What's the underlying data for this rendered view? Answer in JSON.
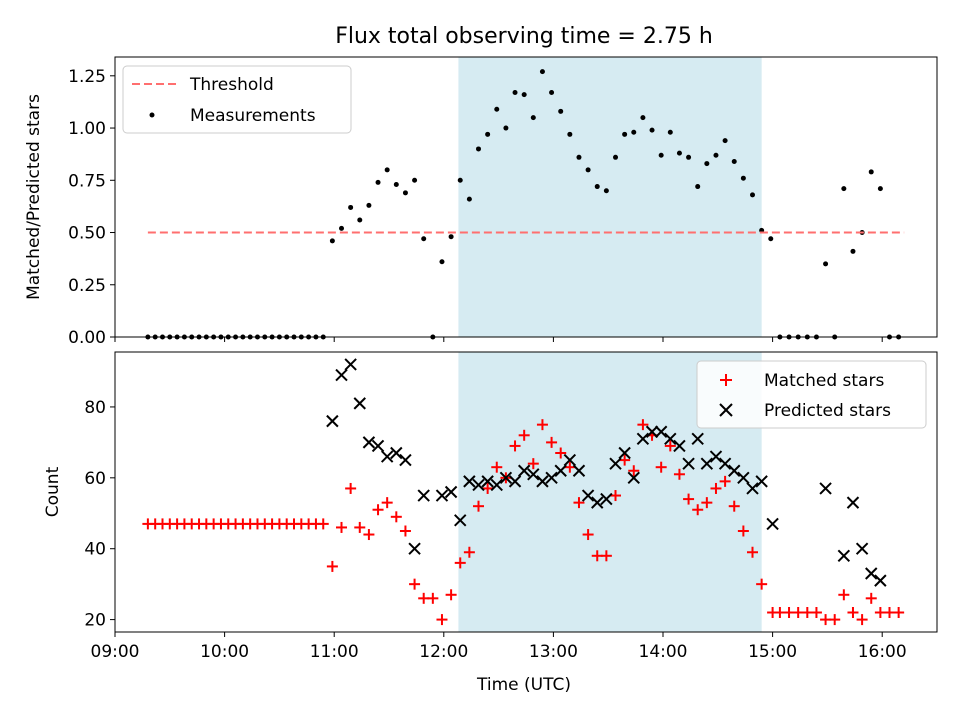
{
  "figure": {
    "title": "Flux total observing time = 2.75 h"
  },
  "colors": {
    "threshold": "#ff6f6f",
    "shade": "#add8e6",
    "matched": "#ff0000",
    "predicted": "#000000",
    "measurements": "#000000"
  },
  "chart_data": [
    {
      "type": "scatter",
      "ylabel": "Matched/Predicted stars",
      "xlim": [
        "09:00",
        "16:30"
      ],
      "ylim": [
        0,
        1.34
      ],
      "yticks": [
        "0.00",
        "0.25",
        "0.50",
        "0.75",
        "1.00",
        "1.25"
      ],
      "shaded_interval": [
        "12:08",
        "14:54"
      ],
      "legend": {
        "placement": "upper-left",
        "entries": [
          "Threshold",
          "Measurements"
        ]
      },
      "threshold": {
        "name": "Threshold",
        "y": 0.5,
        "x_range": [
          "09:18",
          "16:12"
        ]
      },
      "series": [
        {
          "name": "Measurements",
          "points": [
            [
              "09:18",
              0
            ],
            [
              "09:22",
              0
            ],
            [
              "09:26",
              0
            ],
            [
              "09:30",
              0
            ],
            [
              "09:34",
              0
            ],
            [
              "09:38",
              0
            ],
            [
              "09:42",
              0
            ],
            [
              "09:46",
              0
            ],
            [
              "09:50",
              0
            ],
            [
              "09:54",
              0
            ],
            [
              "09:58",
              0
            ],
            [
              "10:02",
              0
            ],
            [
              "10:06",
              0
            ],
            [
              "10:10",
              0
            ],
            [
              "10:14",
              0
            ],
            [
              "10:18",
              0
            ],
            [
              "10:22",
              0
            ],
            [
              "10:26",
              0
            ],
            [
              "10:30",
              0
            ],
            [
              "10:34",
              0
            ],
            [
              "10:38",
              0
            ],
            [
              "10:42",
              0
            ],
            [
              "10:46",
              0
            ],
            [
              "10:50",
              0
            ],
            [
              "10:54",
              0
            ],
            [
              "10:59",
              0.46
            ],
            [
              "11:04",
              0.52
            ],
            [
              "11:09",
              0.62
            ],
            [
              "11:14",
              0.56
            ],
            [
              "11:19",
              0.63
            ],
            [
              "11:24",
              0.74
            ],
            [
              "11:29",
              0.8
            ],
            [
              "11:34",
              0.73
            ],
            [
              "11:39",
              0.69
            ],
            [
              "11:44",
              0.75
            ],
            [
              "11:49",
              0.47
            ],
            [
              "11:54",
              0
            ],
            [
              "11:59",
              0.36
            ],
            [
              "12:04",
              0.48
            ],
            [
              "12:09",
              0.75
            ],
            [
              "12:14",
              0.66
            ],
            [
              "12:19",
              0.9
            ],
            [
              "12:24",
              0.97
            ],
            [
              "12:29",
              1.09
            ],
            [
              "12:34",
              1.0
            ],
            [
              "12:39",
              1.17
            ],
            [
              "12:44",
              1.16
            ],
            [
              "12:49",
              1.05
            ],
            [
              "12:54",
              1.27
            ],
            [
              "12:59",
              1.17
            ],
            [
              "13:04",
              1.08
            ],
            [
              "13:09",
              0.97
            ],
            [
              "13:14",
              0.86
            ],
            [
              "13:19",
              0.8
            ],
            [
              "13:24",
              0.72
            ],
            [
              "13:29",
              0.7
            ],
            [
              "13:34",
              0.86
            ],
            [
              "13:39",
              0.97
            ],
            [
              "13:44",
              0.98
            ],
            [
              "13:49",
              1.05
            ],
            [
              "13:54",
              0.99
            ],
            [
              "13:59",
              0.87
            ],
            [
              "14:04",
              0.98
            ],
            [
              "14:09",
              0.88
            ],
            [
              "14:14",
              0.86
            ],
            [
              "14:19",
              0.72
            ],
            [
              "14:24",
              0.83
            ],
            [
              "14:29",
              0.87
            ],
            [
              "14:34",
              0.94
            ],
            [
              "14:39",
              0.84
            ],
            [
              "14:44",
              0.76
            ],
            [
              "14:49",
              0.68
            ],
            [
              "14:54",
              0.51
            ],
            [
              "14:59",
              0.47
            ],
            [
              "15:04",
              0
            ],
            [
              "15:09",
              0
            ],
            [
              "15:14",
              0
            ],
            [
              "15:19",
              0
            ],
            [
              "15:24",
              0
            ],
            [
              "15:29",
              0.35
            ],
            [
              "15:34",
              0
            ],
            [
              "15:39",
              0.71
            ],
            [
              "15:44",
              0.41
            ],
            [
              "15:49",
              0.5
            ],
            [
              "15:54",
              0.79
            ],
            [
              "15:59",
              0.71
            ],
            [
              "16:04",
              0
            ],
            [
              "16:09",
              0
            ]
          ]
        }
      ]
    },
    {
      "type": "scatter",
      "xlabel": "Time (UTC)",
      "ylabel": "Count",
      "xlim": [
        "09:00",
        "16:30"
      ],
      "xticks": [
        "09:00",
        "10:00",
        "11:00",
        "12:00",
        "13:00",
        "14:00",
        "15:00",
        "16:00"
      ],
      "ylim": [
        16.5,
        95.5
      ],
      "yticks": [
        "20",
        "40",
        "60",
        "80"
      ],
      "shaded_interval": [
        "12:08",
        "14:54"
      ],
      "legend": {
        "placement": "upper-right",
        "entries": [
          "Matched stars",
          "Predicted stars"
        ]
      },
      "series": [
        {
          "name": "Matched stars",
          "marker": "plus",
          "points": [
            [
              "09:18",
              47
            ],
            [
              "09:22",
              47
            ],
            [
              "09:26",
              47
            ],
            [
              "09:30",
              47
            ],
            [
              "09:34",
              47
            ],
            [
              "09:38",
              47
            ],
            [
              "09:42",
              47
            ],
            [
              "09:46",
              47
            ],
            [
              "09:50",
              47
            ],
            [
              "09:54",
              47
            ],
            [
              "09:58",
              47
            ],
            [
              "10:02",
              47
            ],
            [
              "10:06",
              47
            ],
            [
              "10:10",
              47
            ],
            [
              "10:14",
              47
            ],
            [
              "10:18",
              47
            ],
            [
              "10:22",
              47
            ],
            [
              "10:26",
              47
            ],
            [
              "10:30",
              47
            ],
            [
              "10:34",
              47
            ],
            [
              "10:38",
              47
            ],
            [
              "10:42",
              47
            ],
            [
              "10:46",
              47
            ],
            [
              "10:50",
              47
            ],
            [
              "10:54",
              47
            ],
            [
              "10:59",
              35
            ],
            [
              "11:04",
              46
            ],
            [
              "11:09",
              57
            ],
            [
              "11:14",
              46
            ],
            [
              "11:19",
              44
            ],
            [
              "11:24",
              51
            ],
            [
              "11:29",
              53
            ],
            [
              "11:34",
              49
            ],
            [
              "11:39",
              45
            ],
            [
              "11:44",
              30
            ],
            [
              "11:49",
              26
            ],
            [
              "11:54",
              26
            ],
            [
              "11:59",
              20
            ],
            [
              "12:04",
              27
            ],
            [
              "12:09",
              36
            ],
            [
              "12:14",
              39
            ],
            [
              "12:19",
              52
            ],
            [
              "12:24",
              57
            ],
            [
              "12:29",
              63
            ],
            [
              "12:34",
              60
            ],
            [
              "12:39",
              69
            ],
            [
              "12:44",
              72
            ],
            [
              "12:49",
              64
            ],
            [
              "12:54",
              75
            ],
            [
              "12:59",
              70
            ],
            [
              "13:04",
              67
            ],
            [
              "13:09",
              63
            ],
            [
              "13:14",
              53
            ],
            [
              "13:19",
              44
            ],
            [
              "13:24",
              38
            ],
            [
              "13:29",
              38
            ],
            [
              "13:34",
              55
            ],
            [
              "13:39",
              65
            ],
            [
              "13:44",
              62
            ],
            [
              "13:49",
              75
            ],
            [
              "13:54",
              72
            ],
            [
              "13:59",
              63
            ],
            [
              "14:04",
              69
            ],
            [
              "14:09",
              61
            ],
            [
              "14:14",
              54
            ],
            [
              "14:19",
              51
            ],
            [
              "14:24",
              53
            ],
            [
              "14:29",
              57
            ],
            [
              "14:34",
              59
            ],
            [
              "14:39",
              52
            ],
            [
              "14:44",
              45
            ],
            [
              "14:49",
              39
            ],
            [
              "14:54",
              30
            ],
            [
              "15:00",
              22
            ],
            [
              "15:04",
              22
            ],
            [
              "15:09",
              22
            ],
            [
              "15:14",
              22
            ],
            [
              "15:19",
              22
            ],
            [
              "15:24",
              22
            ],
            [
              "15:29",
              20
            ],
            [
              "15:34",
              20
            ],
            [
              "15:39",
              27
            ],
            [
              "15:44",
              22
            ],
            [
              "15:49",
              20
            ],
            [
              "15:54",
              26
            ],
            [
              "15:59",
              22
            ],
            [
              "16:04",
              22
            ],
            [
              "16:09",
              22
            ]
          ]
        },
        {
          "name": "Predicted stars",
          "marker": "x",
          "points": [
            [
              "10:59",
              76
            ],
            [
              "11:04",
              89
            ],
            [
              "11:09",
              92
            ],
            [
              "11:14",
              81
            ],
            [
              "11:19",
              70
            ],
            [
              "11:24",
              69
            ],
            [
              "11:29",
              66
            ],
            [
              "11:34",
              67
            ],
            [
              "11:39",
              65
            ],
            [
              "11:44",
              40
            ],
            [
              "11:49",
              55
            ],
            [
              "11:59",
              55
            ],
            [
              "12:04",
              56
            ],
            [
              "12:09",
              48
            ],
            [
              "12:14",
              59
            ],
            [
              "12:19",
              58
            ],
            [
              "12:24",
              59
            ],
            [
              "12:29",
              58
            ],
            [
              "12:34",
              60
            ],
            [
              "12:39",
              59
            ],
            [
              "12:44",
              62
            ],
            [
              "12:49",
              61
            ],
            [
              "12:54",
              59
            ],
            [
              "12:59",
              60
            ],
            [
              "13:04",
              62
            ],
            [
              "13:09",
              65
            ],
            [
              "13:14",
              62
            ],
            [
              "13:19",
              55
            ],
            [
              "13:24",
              53
            ],
            [
              "13:29",
              54
            ],
            [
              "13:34",
              64
            ],
            [
              "13:39",
              67
            ],
            [
              "13:44",
              60
            ],
            [
              "13:49",
              71
            ],
            [
              "13:54",
              73
            ],
            [
              "13:59",
              73
            ],
            [
              "14:04",
              71
            ],
            [
              "14:09",
              69
            ],
            [
              "14:14",
              64
            ],
            [
              "14:19",
              71
            ],
            [
              "14:24",
              64
            ],
            [
              "14:29",
              66
            ],
            [
              "14:34",
              64
            ],
            [
              "14:39",
              62
            ],
            [
              "14:44",
              60
            ],
            [
              "14:49",
              57
            ],
            [
              "14:54",
              59
            ],
            [
              "15:00",
              47
            ],
            [
              "15:29",
              57
            ],
            [
              "15:39",
              38
            ],
            [
              "15:44",
              53
            ],
            [
              "15:49",
              40
            ],
            [
              "15:54",
              33
            ],
            [
              "15:59",
              31
            ]
          ]
        }
      ]
    }
  ]
}
